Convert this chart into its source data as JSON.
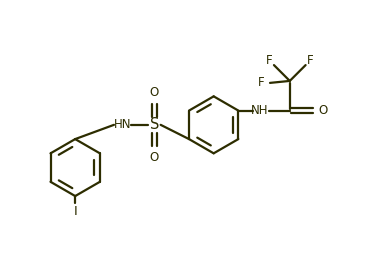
{
  "bg_color": "#ffffff",
  "line_color": "#2d2d00",
  "line_width": 1.6,
  "font_size": 8.5,
  "font_color": "#2d2d00",
  "xlim": [
    0,
    9.2
  ],
  "ylim": [
    0,
    6.4
  ]
}
